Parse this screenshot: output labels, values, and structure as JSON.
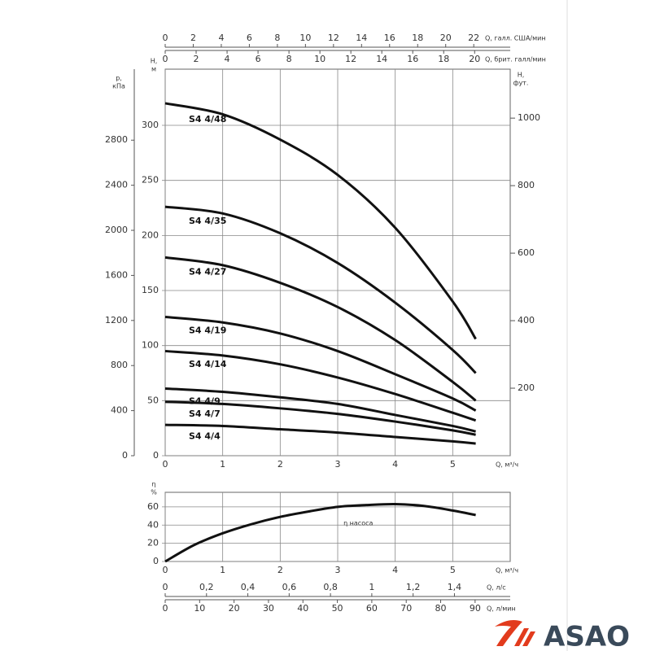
{
  "chart_data": [
    {
      "type": "line",
      "x_label": "Q, м³/ч",
      "y_label": [
        "H,",
        "м"
      ],
      "xlim": [
        0,
        6
      ],
      "xticks": [
        0,
        1,
        2,
        3,
        4,
        5
      ],
      "ylim": [
        0,
        351
      ],
      "yticks": [
        0,
        50,
        100,
        150,
        200,
        250,
        300
      ],
      "grid": true,
      "pressure_axis": {
        "label": [
          "p,",
          "кПа"
        ],
        "lim": [
          0,
          3430
        ],
        "ticks": [
          0,
          400,
          800,
          1200,
          1600,
          2000,
          2400,
          2800
        ]
      },
      "feet_axis": {
        "label": [
          "H,",
          "фут."
        ],
        "lim": [
          0,
          1145
        ],
        "ticks": [
          200,
          400,
          600,
          800,
          1000
        ]
      },
      "us_gpm_axis": {
        "label": "Q, галл. США/мин",
        "lim": [
          0,
          24.6
        ],
        "ticks": [
          0,
          2,
          4,
          6,
          8,
          10,
          12,
          14,
          16,
          18,
          20,
          22
        ]
      },
      "imp_gpm_axis": {
        "label": "Q, брит. галл/мин",
        "lim": [
          0,
          22.3
        ],
        "ticks": [
          0,
          2,
          4,
          6,
          8,
          10,
          12,
          14,
          16,
          18,
          20
        ]
      },
      "x": [
        0,
        1,
        2,
        3,
        4,
        5,
        5.4
      ],
      "series": [
        {
          "name": "S4 4/48",
          "color": "#111111",
          "values": [
            320,
            310,
            287,
            255,
            207,
            140,
            106
          ]
        },
        {
          "name": "S4 4/35",
          "color": "#111111",
          "values": [
            226,
            220,
            202,
            175,
            139,
            96,
            75
          ]
        },
        {
          "name": "S4 4/27",
          "color": "#111111",
          "values": [
            180,
            173,
            157,
            135,
            105,
            67,
            50
          ]
        },
        {
          "name": "S4 4/19",
          "color": "#111111",
          "values": [
            126,
            121,
            111,
            95,
            74,
            52,
            41
          ]
        },
        {
          "name": "S4 4/14",
          "color": "#111111",
          "values": [
            95,
            91,
            83,
            71,
            56,
            39,
            32
          ]
        },
        {
          "name": "S4 4/9",
          "color": "#111111",
          "values": [
            61,
            58,
            53,
            47,
            37,
            27,
            22
          ]
        },
        {
          "name": "S4 4/7",
          "color": "#111111",
          "values": [
            49,
            47,
            43,
            38,
            31,
            23,
            19
          ]
        },
        {
          "name": "S4 4/4",
          "color": "#111111",
          "values": [
            28,
            27,
            24,
            21,
            17,
            13,
            11
          ]
        }
      ]
    },
    {
      "type": "line",
      "x_label": "Q, м³/ч",
      "y_label": [
        "η",
        "%"
      ],
      "xlim": [
        0,
        6
      ],
      "xticks": [
        0,
        1,
        2,
        3,
        4,
        5
      ],
      "ylim": [
        0,
        76
      ],
      "yticks": [
        0,
        20,
        40,
        60
      ],
      "grid": true,
      "ls_axis": {
        "label": "Q, л/с",
        "lim": [
          0,
          1.67
        ],
        "ticks": [
          0,
          {
            "value": 0.2,
            "label": "0,2"
          },
          {
            "value": 0.4,
            "label": "0,4"
          },
          {
            "value": 0.6,
            "label": "0,6"
          },
          {
            "value": 0.8,
            "label": "0,8"
          },
          1,
          {
            "value": 1.2,
            "label": "1,2"
          },
          {
            "value": 1.4,
            "label": "1,4"
          }
        ]
      },
      "lmin_axis": {
        "label": "Q, л/мин",
        "lim": [
          0,
          100.2
        ],
        "ticks": [
          0,
          10,
          20,
          30,
          40,
          50,
          60,
          70,
          80,
          90
        ]
      },
      "x": [
        0,
        0.5,
        1,
        1.5,
        2,
        2.5,
        3,
        3.5,
        4,
        4.5,
        5,
        5.4
      ],
      "series": [
        {
          "name": "η насоса",
          "color": "#111111",
          "values": [
            0,
            18,
            31,
            41,
            49,
            55,
            60,
            62,
            63,
            61,
            56,
            51
          ]
        }
      ]
    }
  ],
  "logo": {
    "text": "ASAO"
  }
}
